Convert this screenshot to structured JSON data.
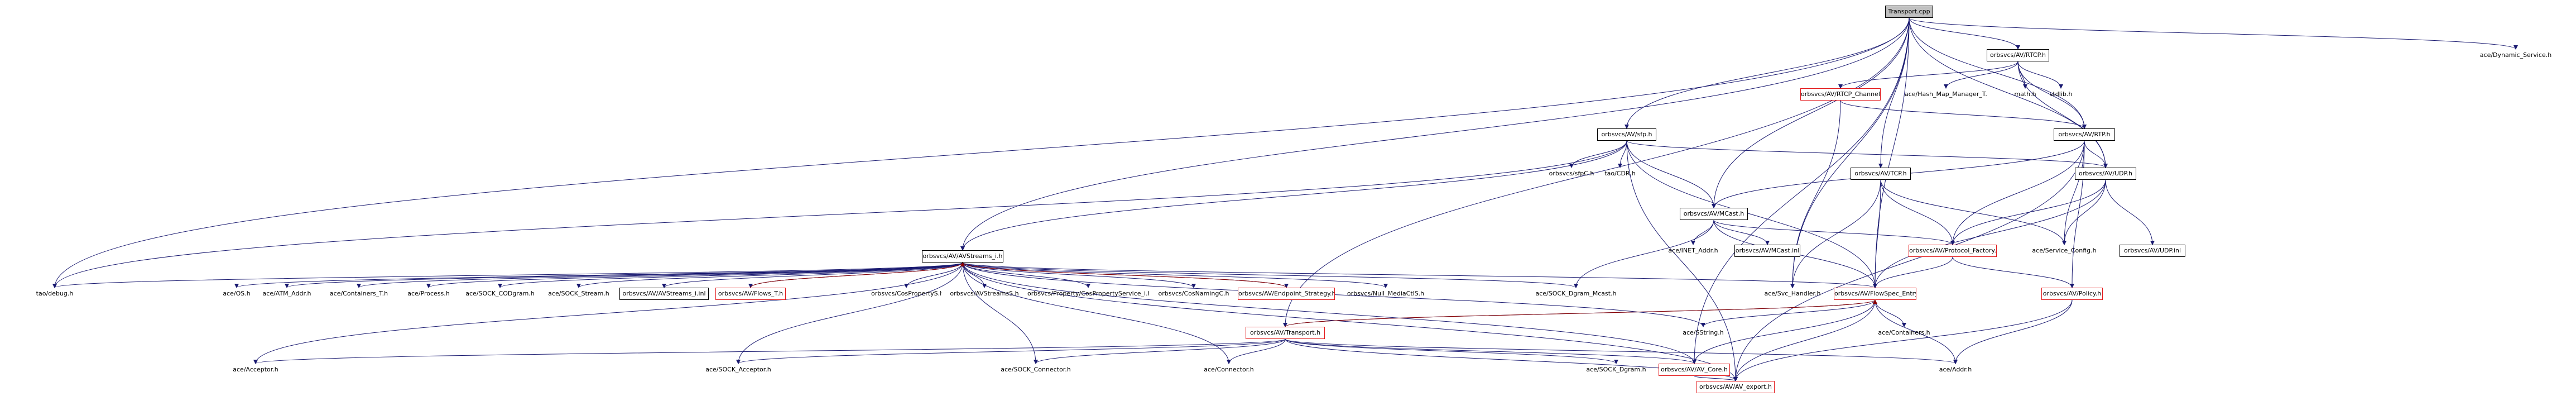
{
  "diagram": {
    "colors": {
      "edge": "#191970",
      "edge_return": "#8b0000",
      "box_red": "#e31a1c",
      "box_black": "#000000",
      "root_fill": "#c0c0c0"
    },
    "nodes": {
      "transport_cpp": "Transport.cpp",
      "ace_dynamic_service": "ace/Dynamic_Service.h",
      "av_rtcp": "orbsvcs/AV/RTCP.h",
      "av_rtcp_channel": "orbsvcs/AV/RTCP_Channel.h",
      "ace_hash_map_manager_t": "ace/Hash_Map_Manager_T.h",
      "math_h": "math.h",
      "stdlib_h": "stdlib.h",
      "av_rtp": "orbsvcs/AV/RTP.h",
      "av_sfp": "orbsvcs/AV/sfp.h",
      "sfpc": "orbsvcs/sfpC.h",
      "tao_cdr": "tao/CDR.h",
      "av_udp": "orbsvcs/AV/UDP.h",
      "av_mcast": "orbsvcs/AV/MCast.h",
      "av_tcp": "orbsvcs/AV/TCP.h",
      "ace_net_addr": "ace/INET_Addr.h",
      "av_mcast_inl": "orbsvcs/AV/MCast.inl",
      "av_protocol_factory": "orbsvcs/AV/Protocol_Factory.h",
      "ace_service_config": "ace/Service_Config.h",
      "av_udp_inl": "orbsvcs/AV/UDP.inl",
      "av_avstreams_i": "orbsvcs/AV/AVStreams_i.h",
      "tao_debug": "tao/debug.h",
      "ace_os": "ace/OS.h",
      "ace_atm_addr": "ace/ATM_Addr.h",
      "ace_containers_t": "ace/Containers_T.h",
      "ace_process": "ace/Process.h",
      "ace_sock_codgram": "ace/SOCK_CODgram.h",
      "ace_sock_stream": "ace/SOCK_Stream.h",
      "av_avstreams_i_inl": "orbsvcs/AV/AVStreams_i.inl",
      "av_flows_t": "orbsvcs/AV/Flows_T.h",
      "cospropertys": "orbsvcs/CosPropertyS.h",
      "avstreamss": "orbsvcs/AVStreamsS.h",
      "cospropertyservice_i": "orbsvcs/Property/CosPropertyService_i.h",
      "cosnamingc": "orbsvcs/CosNamingC.h",
      "av_endpoint_strategy": "orbsvcs/AV/Endpoint_Strategy.h",
      "null_mediactls": "orbsvcs/Null_MediaCtlS.h",
      "ace_sock_dgram_mcast": "ace/SOCK_Dgram_Mcast.h",
      "ace_svc_handler": "ace/Svc_Handler.h",
      "av_flowspec_entry": "orbsvcs/AV/FlowSpec_Entry.h",
      "av_policy": "orbsvcs/AV/Policy.h",
      "ace_sstring": "ace/SString.h",
      "ace_containers": "ace/Containers.h",
      "av_transport": "orbsvcs/AV/Transport.h",
      "ace_acceptor": "ace/Acceptor.h",
      "ace_sock_acceptor": "ace/SOCK_Acceptor.h",
      "ace_sock_connector": "ace/SOCK_Connector.h",
      "ace_connector": "ace/Connector.h",
      "ace_sock_dgram": "ace/SOCK_Dgram.h",
      "av_av_core": "orbsvcs/AV/AV_Core.h",
      "ace_addr": "ace/Addr.h",
      "av_av_export": "orbsvcs/AV/AV_export.h"
    }
  }
}
